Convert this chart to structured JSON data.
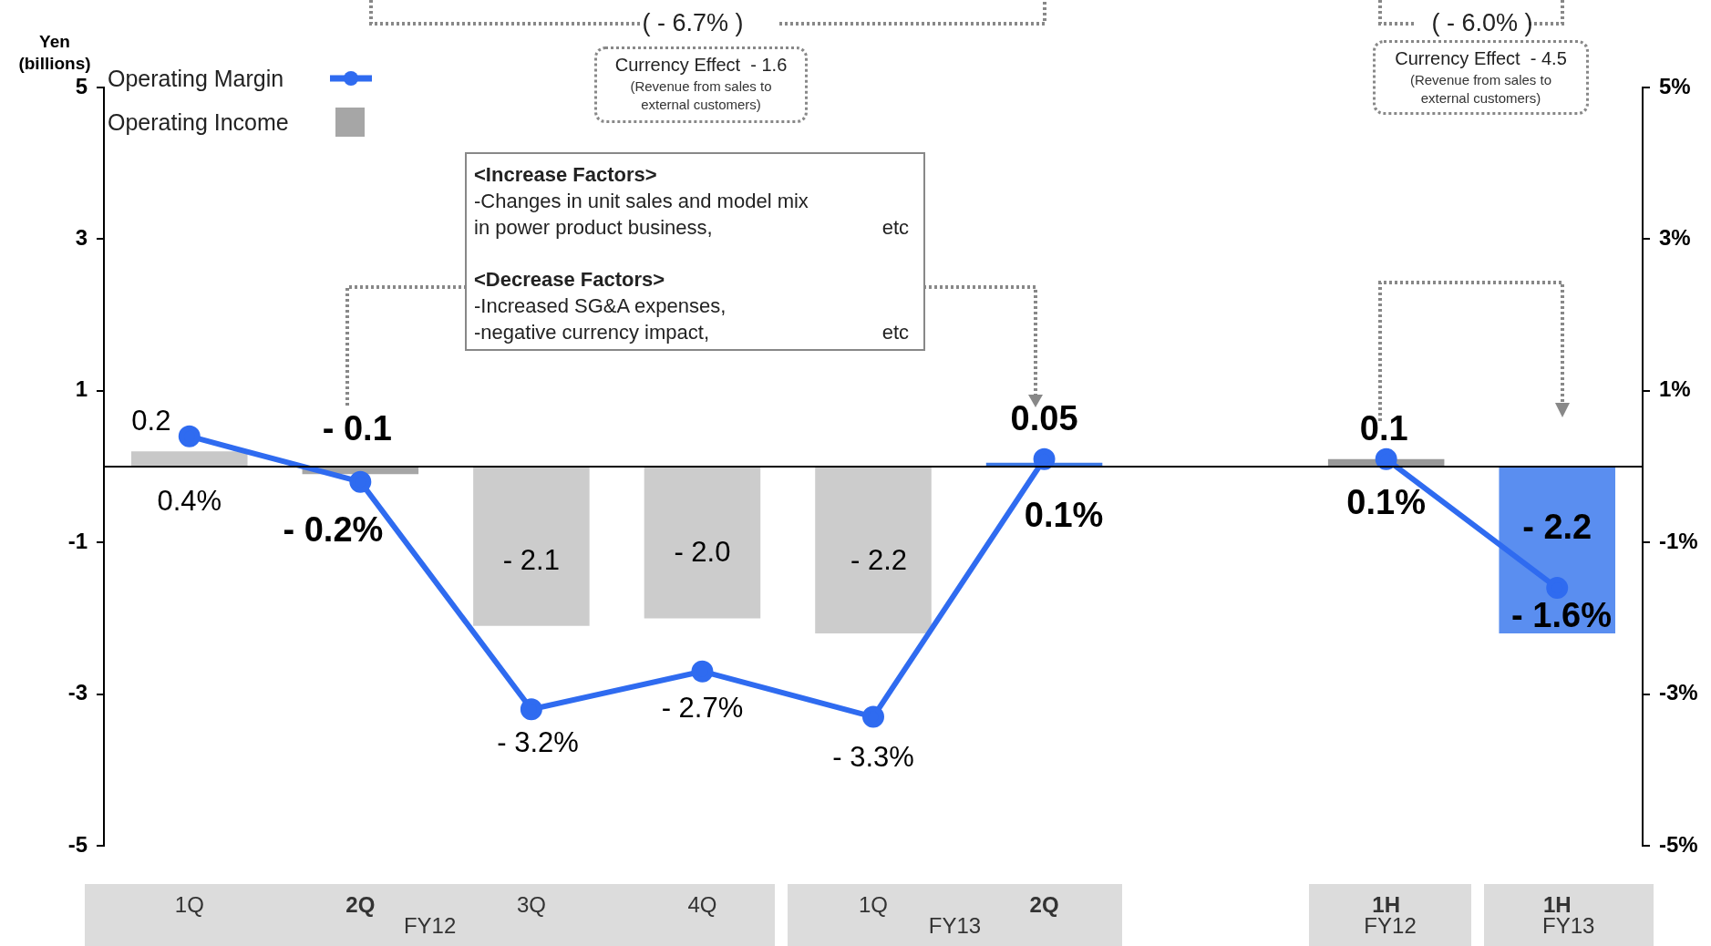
{
  "chart_data": {
    "type": "bar",
    "ylabel": "Yen (billions)",
    "categories": [
      "1Q",
      "2Q",
      "3Q",
      "4Q",
      "1Q",
      "2Q",
      null,
      "1H",
      "1H"
    ],
    "series": [
      {
        "name": "Operating Income",
        "type": "bar",
        "colors": [
          "#c8c8c8",
          "#a6a6a6",
          "#cccccc",
          "#cccccc",
          "#cccccc",
          "#3c78e6",
          "#cccccc",
          "#999999",
          "#5a8ef0"
        ],
        "values": [
          0.2,
          -0.1,
          -2.1,
          -2.0,
          -2.2,
          0.05,
          null,
          0.1,
          -2.2
        ],
        "value_labels": [
          "0.2",
          "- 0.1",
          "- 2.1",
          "- 2.0",
          "- 2.2",
          "0.05",
          null,
          "0.1",
          "- 2.2"
        ]
      },
      {
        "name": "Operating Margin",
        "type": "line",
        "axis": "y2",
        "color": "#2f6bf0",
        "marker": "circle",
        "values": [
          0.4,
          -0.2,
          -3.2,
          -2.7,
          -3.3,
          0.1,
          null,
          0.1,
          -1.6
        ],
        "value_labels": [
          "0.4%",
          "- 0.2%",
          "- 3.2%",
          "- 2.7%",
          "- 3.3%",
          "0.1%",
          null,
          "0.1%",
          "- 1.6%"
        ]
      }
    ],
    "ylim": [
      -5,
      5
    ],
    "yticks": [
      -5,
      -3,
      -1,
      1,
      3,
      5
    ],
    "y2lim": [
      -5,
      5
    ],
    "y2ticks": [
      {
        "value": -5,
        "label": "-5%"
      },
      {
        "value": -3,
        "label": "-3%"
      },
      {
        "value": -1,
        "label": "-1%"
      },
      {
        "value": 1,
        "label": "1%"
      },
      {
        "value": 3,
        "label": "3%"
      },
      {
        "value": 5,
        "label": "5%"
      }
    ],
    "ref_lines": [
      {
        "axis": "y",
        "value": 0,
        "color": "#000000"
      }
    ],
    "legend": "top left",
    "annotations": [
      "( - 6.7% )",
      "Currency Effect  - 1.6",
      "(Revenue from sales to external customers)",
      "( - 6.0% )",
      "Currency Effect  - 4.5",
      "(Revenue from sales to external customers)",
      "<Increase Factors>",
      "-Changes in unit sales and model mix",
      "in power product business,",
      "etc",
      "<Decrease Factors>",
      "-Increased SG&A expenses,",
      "-negative currency impact,",
      "etc",
      "FY12",
      "FY13",
      "FY12",
      "FY13"
    ]
  }
}
